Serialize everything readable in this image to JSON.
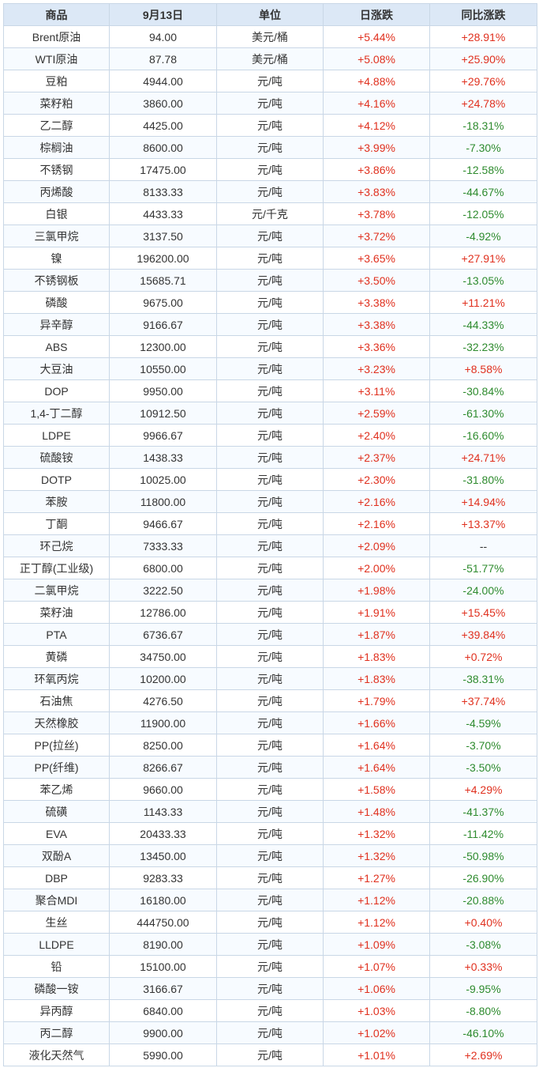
{
  "table": {
    "headers": [
      "商品",
      "9月13日",
      "单位",
      "日涨跌",
      "同比涨跌"
    ],
    "rows": [
      [
        "Brent原油",
        "94.00",
        "美元/桶",
        "+5.44%",
        "+28.91%"
      ],
      [
        "WTI原油",
        "87.78",
        "美元/桶",
        "+5.08%",
        "+25.90%"
      ],
      [
        "豆粕",
        "4944.00",
        "元/吨",
        "+4.88%",
        "+29.76%"
      ],
      [
        "菜籽粕",
        "3860.00",
        "元/吨",
        "+4.16%",
        "+24.78%"
      ],
      [
        "乙二醇",
        "4425.00",
        "元/吨",
        "+4.12%",
        "-18.31%"
      ],
      [
        "棕榈油",
        "8600.00",
        "元/吨",
        "+3.99%",
        "-7.30%"
      ],
      [
        "不锈钢",
        "17475.00",
        "元/吨",
        "+3.86%",
        "-12.58%"
      ],
      [
        "丙烯酸",
        "8133.33",
        "元/吨",
        "+3.83%",
        "-44.67%"
      ],
      [
        "白银",
        "4433.33",
        "元/千克",
        "+3.78%",
        "-12.05%"
      ],
      [
        "三氯甲烷",
        "3137.50",
        "元/吨",
        "+3.72%",
        "-4.92%"
      ],
      [
        "镍",
        "196200.00",
        "元/吨",
        "+3.65%",
        "+27.91%"
      ],
      [
        "不锈钢板",
        "15685.71",
        "元/吨",
        "+3.50%",
        "-13.05%"
      ],
      [
        "磷酸",
        "9675.00",
        "元/吨",
        "+3.38%",
        "+11.21%"
      ],
      [
        "异辛醇",
        "9166.67",
        "元/吨",
        "+3.38%",
        "-44.33%"
      ],
      [
        "ABS",
        "12300.00",
        "元/吨",
        "+3.36%",
        "-32.23%"
      ],
      [
        "大豆油",
        "10550.00",
        "元/吨",
        "+3.23%",
        "+8.58%"
      ],
      [
        "DOP",
        "9950.00",
        "元/吨",
        "+3.11%",
        "-30.84%"
      ],
      [
        "1,4-丁二醇",
        "10912.50",
        "元/吨",
        "+2.59%",
        "-61.30%"
      ],
      [
        "LDPE",
        "9966.67",
        "元/吨",
        "+2.40%",
        "-16.60%"
      ],
      [
        "硫酸铵",
        "1438.33",
        "元/吨",
        "+2.37%",
        "+24.71%"
      ],
      [
        "DOTP",
        "10025.00",
        "元/吨",
        "+2.30%",
        "-31.80%"
      ],
      [
        "苯胺",
        "11800.00",
        "元/吨",
        "+2.16%",
        "+14.94%"
      ],
      [
        "丁酮",
        "9466.67",
        "元/吨",
        "+2.16%",
        "+13.37%"
      ],
      [
        "环己烷",
        "7333.33",
        "元/吨",
        "+2.09%",
        "--"
      ],
      [
        "正丁醇(工业级)",
        "6800.00",
        "元/吨",
        "+2.00%",
        "-51.77%"
      ],
      [
        "二氯甲烷",
        "3222.50",
        "元/吨",
        "+1.98%",
        "-24.00%"
      ],
      [
        "菜籽油",
        "12786.00",
        "元/吨",
        "+1.91%",
        "+15.45%"
      ],
      [
        "PTA",
        "6736.67",
        "元/吨",
        "+1.87%",
        "+39.84%"
      ],
      [
        "黄磷",
        "34750.00",
        "元/吨",
        "+1.83%",
        "+0.72%"
      ],
      [
        "环氧丙烷",
        "10200.00",
        "元/吨",
        "+1.83%",
        "-38.31%"
      ],
      [
        "石油焦",
        "4276.50",
        "元/吨",
        "+1.79%",
        "+37.74%"
      ],
      [
        "天然橡胶",
        "11900.00",
        "元/吨",
        "+1.66%",
        "-4.59%"
      ],
      [
        "PP(拉丝)",
        "8250.00",
        "元/吨",
        "+1.64%",
        "-3.70%"
      ],
      [
        "PP(纤维)",
        "8266.67",
        "元/吨",
        "+1.64%",
        "-3.50%"
      ],
      [
        "苯乙烯",
        "9660.00",
        "元/吨",
        "+1.58%",
        "+4.29%"
      ],
      [
        "硫磺",
        "1143.33",
        "元/吨",
        "+1.48%",
        "-41.37%"
      ],
      [
        "EVA",
        "20433.33",
        "元/吨",
        "+1.32%",
        "-11.42%"
      ],
      [
        "双酚A",
        "13450.00",
        "元/吨",
        "+1.32%",
        "-50.98%"
      ],
      [
        "DBP",
        "9283.33",
        "元/吨",
        "+1.27%",
        "-26.90%"
      ],
      [
        "聚合MDI",
        "16180.00",
        "元/吨",
        "+1.12%",
        "-20.88%"
      ],
      [
        "生丝",
        "444750.00",
        "元/吨",
        "+1.12%",
        "+0.40%"
      ],
      [
        "LLDPE",
        "8190.00",
        "元/吨",
        "+1.09%",
        "-3.08%"
      ],
      [
        "铅",
        "15100.00",
        "元/吨",
        "+1.07%",
        "+0.33%"
      ],
      [
        "磷酸一铵",
        "3166.67",
        "元/吨",
        "+1.06%",
        "-9.95%"
      ],
      [
        "异丙醇",
        "6840.00",
        "元/吨",
        "+1.03%",
        "-8.80%"
      ],
      [
        "丙二醇",
        "9900.00",
        "元/吨",
        "+1.02%",
        "-46.10%"
      ],
      [
        "液化天然气",
        "5990.00",
        "元/吨",
        "+1.01%",
        "+2.69%"
      ]
    ]
  },
  "colors": {
    "header_bg": "#dce8f6",
    "border": "#c9d7e6",
    "up": "#e0301e",
    "down": "#2e8b2e",
    "text": "#333333"
  }
}
